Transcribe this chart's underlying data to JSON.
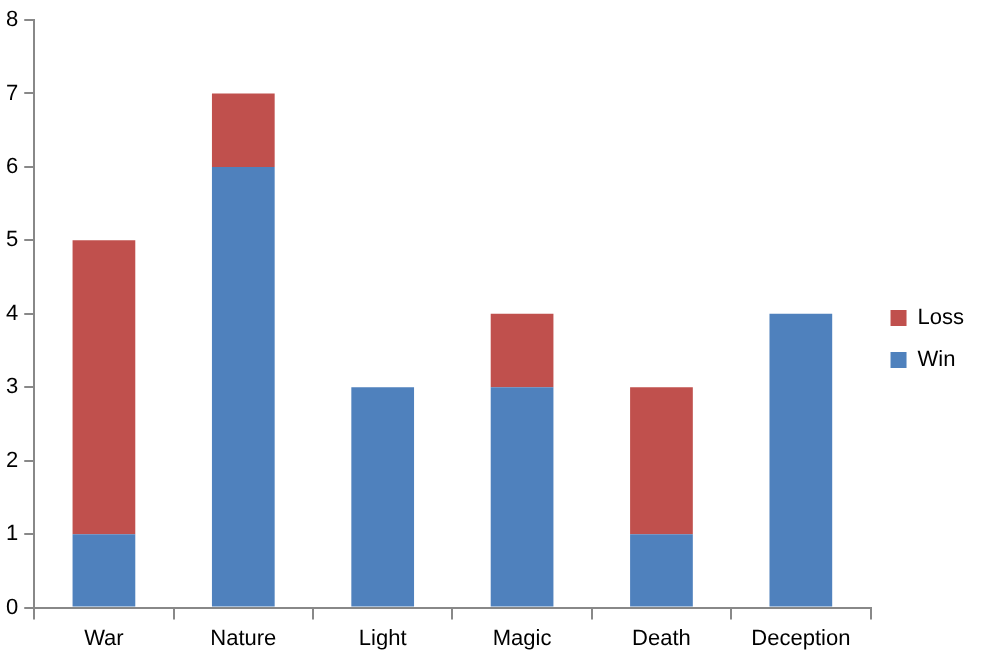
{
  "chart_data": {
    "type": "bar",
    "categories": [
      "War",
      "Nature",
      "Light",
      "Magic",
      "Death",
      "Deception"
    ],
    "stacked": true,
    "series": [
      {
        "name": "Win",
        "color": "#4f81bd",
        "values": [
          1,
          6,
          3,
          3,
          1,
          4
        ]
      },
      {
        "name": "Loss",
        "color": "#c0504d",
        "values": [
          4,
          1,
          0,
          1,
          2,
          0
        ]
      }
    ],
    "ylim": [
      0,
      8
    ],
    "yticks": [
      0,
      1,
      2,
      3,
      4,
      5,
      6,
      7,
      8
    ],
    "grid": false,
    "legend": "right"
  }
}
